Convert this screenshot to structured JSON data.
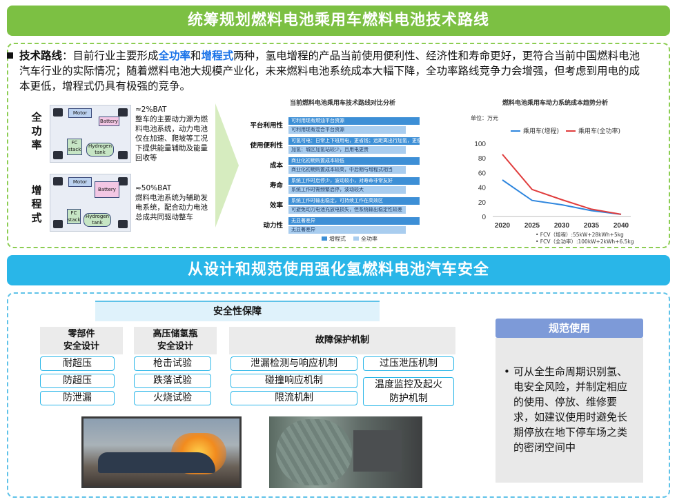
{
  "top_banner": "统筹规划燃料电池乘用车燃料电池技术路线",
  "intro": {
    "bold": "技术路线",
    "t1": "：目前行业主要形成",
    "hl1": "全功率",
    "t2": "和",
    "hl2": "增程式",
    "t3": "两种，氢电增程的产品当前使用便利性、经济性和寿命更好，更符合当前中国燃料电池汽车行业的实际情况；随着燃料电池大规模产业化，未来燃料电池系统成本大幅下降，全功率路线竞争力会增强，但考虑到用电的成本更低，增程式仍具有极强的竞争。"
  },
  "diagram_full": {
    "side_label": "全功率",
    "motor": "Motor",
    "battery": "Battery",
    "fc": "FC stack",
    "tank": "Hydrogen tank",
    "ratio": "≈2%BAT",
    "desc": "整车的主要动力源为燃料电池系统，动力电池仅在加速、爬坡等工况下提供能量辅助及能量回收等"
  },
  "diagram_range": {
    "side_label": "增程式",
    "motor": "Motor",
    "battery": "Battery",
    "fc": "FC stack",
    "tank": "Hydrogen tank",
    "ratio": "≈50%BAT",
    "desc": "燃料电池系统为辅助发电系统，配合动力电池总成共同驱动整车"
  },
  "compare_chart": {
    "title": "当前燃料电池乘用车技术路线对比分析",
    "rows": [
      {
        "label": "平台利用性",
        "dark": "可利用现有燃油平台资源",
        "light": "可利用现有混合平台资源"
      },
      {
        "label": "使用便利性",
        "dark": "可氢可电：日常上下班用电，更省钱；远距离出行加氢，更便捷",
        "light": "加氢：城区加氢站较少，且用电更贵"
      },
      {
        "label": "成本",
        "dark": "商业化初期购置成本较低",
        "light": "商业化初期购置成本较高，中后期与增程式相当"
      },
      {
        "label": "寿命",
        "dark": "系统工作时启停少，波动较小，对寿命非常友好",
        "light": "系统工作时需频繁启停，波动较大"
      },
      {
        "label": "效率",
        "dark": "系统工作时输出稳定，可持续工作在高效区",
        "light": "可避免动力电池充放电损失，但系统输出稳定性较差"
      },
      {
        "label": "动力性",
        "dark": "无显著差异",
        "light": "无显著差异"
      }
    ],
    "legend": [
      "增程式",
      "全功率"
    ],
    "colors": {
      "dark": "#3d8fd6",
      "light": "#a9cdef"
    }
  },
  "chart_data": {
    "type": "line",
    "title": "燃料电池乘用车动力系统成本趋势分析",
    "unit_label": "单位：万元",
    "x": [
      2020,
      2025,
      2030,
      2035,
      2040
    ],
    "ylim": [
      0,
      100
    ],
    "yticks": [
      0,
      20,
      40,
      60,
      80,
      100
    ],
    "series": [
      {
        "name": "乘用车(增程)",
        "color": "#2e86de",
        "values": [
          50,
          22,
          16,
          8,
          3
        ]
      },
      {
        "name": "乘用车(全功率)",
        "color": "#e03c3c",
        "values": [
          85,
          37,
          23,
          10,
          3
        ]
      }
    ],
    "footnotes": [
      "FCV（增程）:55kW+28kWh+5kg",
      "FCV（全功率）:100kW+2kWh+6.5kg"
    ]
  },
  "bottom_banner": "从设计和规范使用强化氢燃料电池汽车安全",
  "safety": {
    "title": "安全性保障",
    "parts": {
      "head": "零部件\n安全设计",
      "items": [
        "耐超压",
        "防超压",
        "防泄漏"
      ]
    },
    "tank": {
      "head": "高压储氢瓶\n安全设计",
      "items": [
        "枪击试验",
        "跌落试验",
        "火烧试验"
      ]
    },
    "fault": {
      "head": "故障保护机制",
      "left_items": [
        "泄漏检测与响应机制",
        "碰撞响应机制",
        "限流机制"
      ],
      "right_items": [
        "过压泄压机制",
        "温度监控及起火防护机制"
      ]
    }
  },
  "standard": {
    "head": "规范使用",
    "bullet": "•",
    "text": "可从全生命周期识别氢、电安全风险，并制定相应的使用、停放、维修要求，如建议使用时避免长期停放在地下停车场之类的密闭空间中"
  }
}
